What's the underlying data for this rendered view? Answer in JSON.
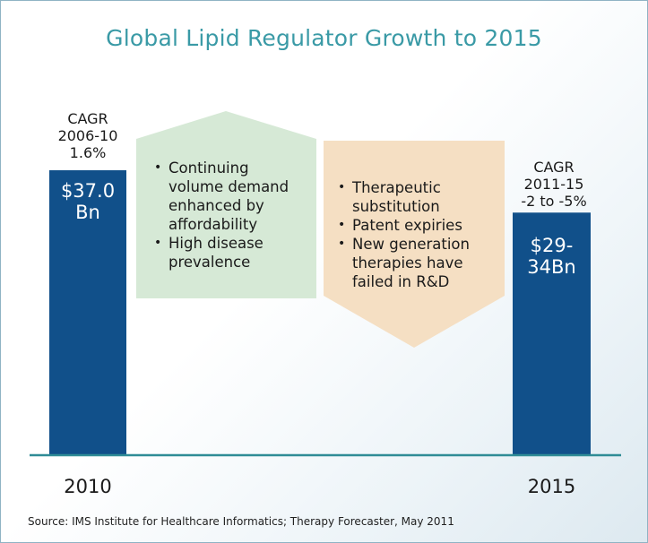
{
  "title": "Global Lipid Regulator Growth to 2015",
  "chart_data": {
    "type": "bar",
    "categories": [
      "2010",
      "2015"
    ],
    "values": [
      37.0,
      31.5
    ],
    "value_labels": [
      "$37.0 Bn",
      "$29-34Bn"
    ],
    "range_2015": [
      29,
      34
    ],
    "unit": "$ Bn",
    "bar_color": "#11508a"
  },
  "cagr_left": {
    "line1": "CAGR",
    "line2": "2006-10",
    "line3": "1.6%"
  },
  "cagr_right": {
    "line1": "CAGR",
    "line2": "2011-15",
    "line3": "-2 to -5%"
  },
  "bar_left": {
    "line1": "$37.0",
    "line2": "Bn"
  },
  "bar_right": {
    "line1": "$29-",
    "line2": "34Bn"
  },
  "growth_drivers": {
    "color": "#d6e9d6",
    "items": [
      [
        "Continuing",
        "volume demand",
        "enhanced by",
        "affordability"
      ],
      [
        "High disease",
        "prevalence"
      ]
    ]
  },
  "growth_constraints": {
    "color": "#f5dfc3",
    "items": [
      [
        "Therapeutic",
        "substitution"
      ],
      [
        "Patent expiries"
      ],
      [
        "New generation",
        "therapies have",
        "failed in R&D"
      ]
    ]
  },
  "source": "Source: IMS Institute for Healthcare Informatics; Therapy Forecaster, May 2011"
}
